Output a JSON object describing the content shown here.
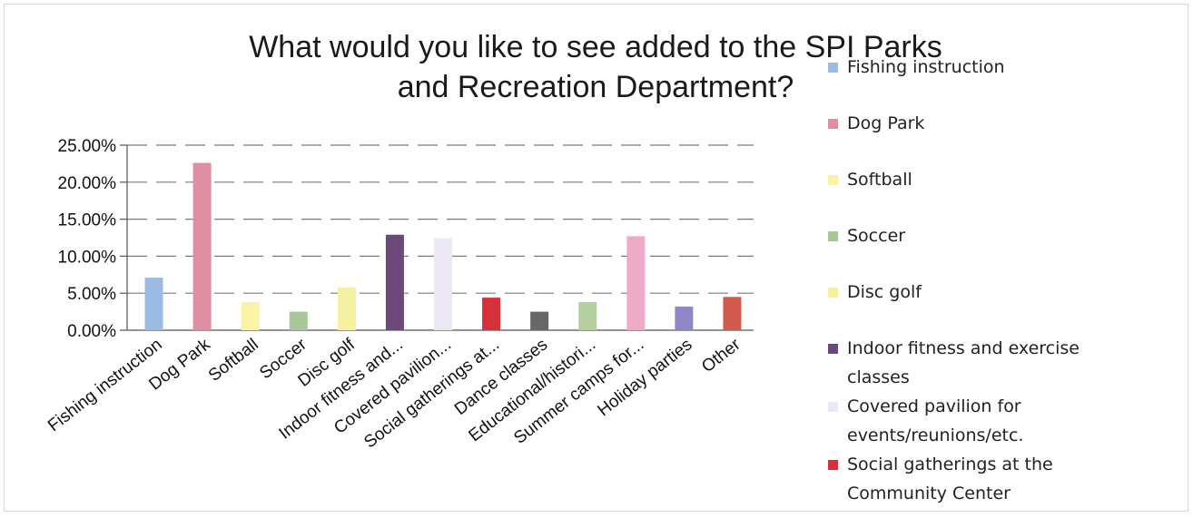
{
  "chart_data": {
    "type": "bar",
    "title": "What would you like to see added to the SPI Parks and Recreation Department?",
    "title_lines": [
      "What would you like to see added to the SPI Parks",
      "and Recreation Department?"
    ],
    "xlabel": "",
    "ylabel": "",
    "ylim": [
      0,
      25
    ],
    "y_ticks": [
      "25.00%",
      "20.00%",
      "15.00%",
      "10.00%",
      "5.00%",
      "0.00%"
    ],
    "y_tick_values": [
      25,
      20,
      15,
      10,
      5,
      0
    ],
    "grid": true,
    "legend_position": "right",
    "categories": [
      "Fishing instruction",
      "Dog Park",
      "Softball",
      "Soccer",
      "Disc golf",
      "Indoor fitness and...",
      "Covered pavilion...",
      "Social gatherings at...",
      "Dance classes",
      "Educational/histori...",
      "Summer camps for...",
      "Holiday parties",
      "Other"
    ],
    "values": [
      7.1,
      22.6,
      3.8,
      2.5,
      5.8,
      12.9,
      12.4,
      4.4,
      2.5,
      3.8,
      12.7,
      3.2,
      4.5
    ],
    "colors": [
      "#9bbbe3",
      "#e08ea3",
      "#fbf3a4",
      "#a9c69a",
      "#f6f0a1",
      "#6b4a7a",
      "#ece7f4",
      "#d6303a",
      "#676767",
      "#b6cf9f",
      "#eeaac6",
      "#8d88c5",
      "#d25a4f"
    ],
    "legend": [
      {
        "label": "Fishing instruction",
        "color": "#9bbbe3"
      },
      {
        "label": "Dog Park",
        "color": "#e08ea3"
      },
      {
        "label": "Softball",
        "color": "#fbf3a4"
      },
      {
        "label": "Soccer",
        "color": "#a9c69a"
      },
      {
        "label": "Disc golf",
        "color": "#f6f0a1"
      },
      {
        "label": "Indoor fitness and exercise classes",
        "lines": [
          "Indoor fitness and exercise",
          "classes"
        ],
        "color": "#6b4a7a"
      },
      {
        "label": "Covered pavilion for events/reunions/etc.",
        "lines": [
          "Covered pavilion for",
          "events/reunions/etc."
        ],
        "color": "#ece7f4"
      },
      {
        "label": "Social gatherings at the Community Center",
        "lines": [
          "Social gatherings at the",
          "Community Center"
        ],
        "color": "#d6303a"
      }
    ]
  }
}
